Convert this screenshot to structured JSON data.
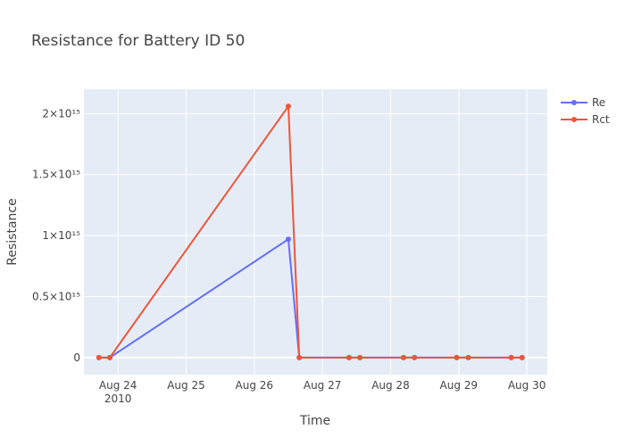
{
  "chart_data": {
    "type": "line",
    "title": "Resistance for Battery ID 50",
    "xlabel": "Time",
    "ylabel": "Resistance",
    "x_ticks": [
      {
        "label": "Aug 24",
        "sublabel": "2010",
        "day": 24
      },
      {
        "label": "Aug 25",
        "day": 25
      },
      {
        "label": "Aug 26",
        "day": 26
      },
      {
        "label": "Aug 27",
        "day": 27
      },
      {
        "label": "Aug 28",
        "day": 28
      },
      {
        "label": "Aug 29",
        "day": 29
      },
      {
        "label": "Aug 30",
        "day": 30
      }
    ],
    "y_ticks": [
      {
        "value": 0,
        "label": "0"
      },
      {
        "value": 500000000000000.0,
        "label": "0.5×10¹⁵"
      },
      {
        "value": 1000000000000000.0,
        "label": "1×10¹⁵"
      },
      {
        "value": 1500000000000000.0,
        "label": "1.5×10¹⁵"
      },
      {
        "value": 2000000000000000.0,
        "label": "2×10¹⁵"
      }
    ],
    "xlim_days": [
      23.5,
      30.3
    ],
    "ylim": [
      -140000000000000.0,
      2200000000000000.0
    ],
    "legend_position": "top-right",
    "grid": true,
    "series": [
      {
        "name": "Re",
        "color": "#636efa",
        "points": [
          {
            "day": 23.72,
            "value": 0
          },
          {
            "day": 23.88,
            "value": 0
          },
          {
            "day": 26.5,
            "value": 970000000000000.0
          },
          {
            "day": 26.66,
            "value": 0
          },
          {
            "day": 27.39,
            "value": 0
          },
          {
            "day": 27.55,
            "value": 0
          },
          {
            "day": 28.19,
            "value": 0
          },
          {
            "day": 28.35,
            "value": 0
          },
          {
            "day": 28.97,
            "value": 0
          },
          {
            "day": 29.14,
            "value": 0
          },
          {
            "day": 29.77,
            "value": 0
          },
          {
            "day": 29.93,
            "value": 0
          }
        ]
      },
      {
        "name": "Rct",
        "color": "#ef553b",
        "points": [
          {
            "day": 23.72,
            "value": 0
          },
          {
            "day": 23.88,
            "value": 0
          },
          {
            "day": 26.5,
            "value": 2060000000000000.0
          },
          {
            "day": 26.66,
            "value": 0
          },
          {
            "day": 27.39,
            "value": 0
          },
          {
            "day": 27.55,
            "value": 0
          },
          {
            "day": 28.19,
            "value": 0
          },
          {
            "day": 28.35,
            "value": 0
          },
          {
            "day": 28.97,
            "value": 0
          },
          {
            "day": 29.14,
            "value": 0
          },
          {
            "day": 29.77,
            "value": 0
          },
          {
            "day": 29.93,
            "value": 0
          }
        ]
      }
    ]
  }
}
